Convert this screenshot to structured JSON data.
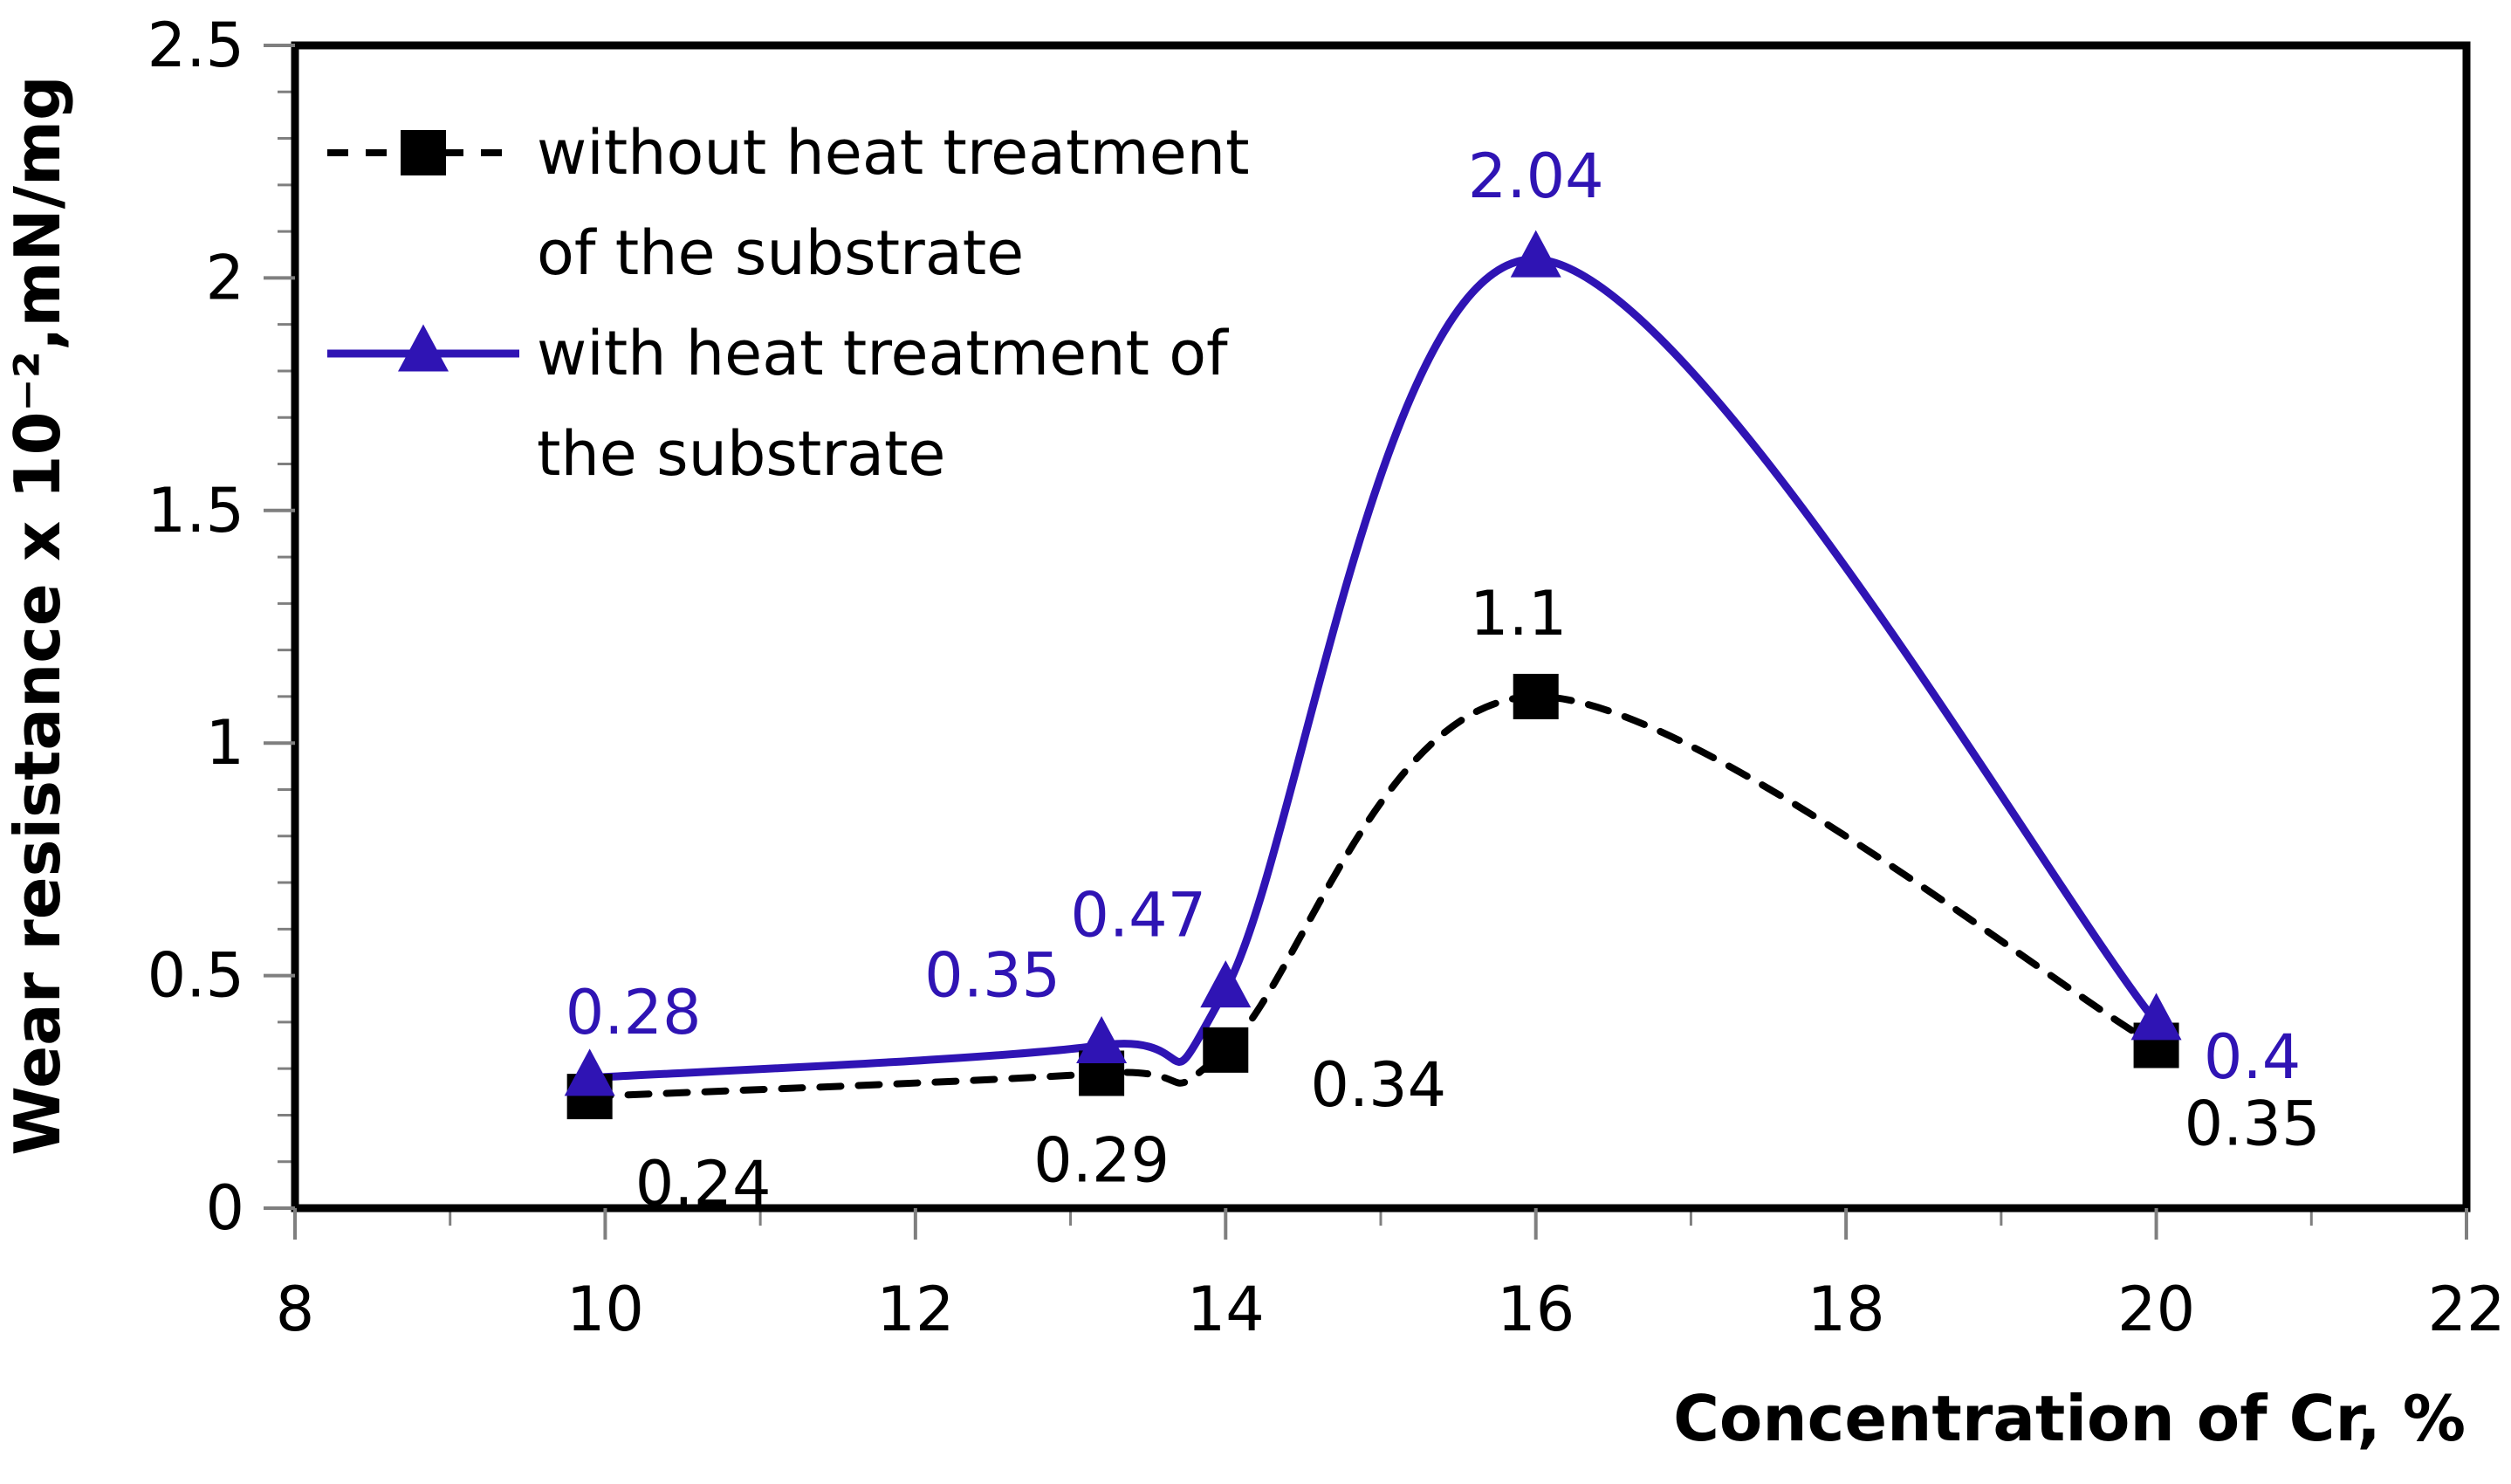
{
  "chart_data": {
    "type": "line",
    "title": "",
    "xlabel": "Concentration of Cr, %",
    "ylabel": "Wear resistance x 10⁻²,mN/mg",
    "xlim": [
      8,
      22
    ],
    "ylim": [
      0,
      2.5
    ],
    "x_ticks": [
      8,
      10,
      12,
      14,
      16,
      18,
      20,
      22
    ],
    "x_tick_labels": [
      "8",
      "10",
      "12",
      "14",
      "16",
      "18",
      "20",
      "22"
    ],
    "y_ticks": [
      0,
      0.5,
      1,
      1.5,
      2,
      2.5
    ],
    "y_tick_labels": [
      "0",
      "0.5",
      "1",
      "1.5",
      "2",
      "2.5"
    ],
    "grid": false,
    "legend_position": "top-left",
    "series": [
      {
        "name": "without heat treatment of the substrate",
        "legend_lines": [
          "without heat treatment",
          "of the substrate"
        ],
        "color": "#000000",
        "line_style": "dashed",
        "marker": "square",
        "x": [
          9.9,
          13.2,
          14,
          16,
          20
        ],
        "values": [
          0.24,
          0.29,
          0.34,
          1.1,
          0.35
        ],
        "data_labels": [
          "0.24",
          "0.29",
          "0.34",
          "1.1",
          "0.35"
        ]
      },
      {
        "name": "with heat treatment of the substrate",
        "legend_lines": [
          "with heat treatment of",
          "the substrate"
        ],
        "color": "#2F14B4",
        "line_style": "solid",
        "marker": "triangle",
        "x": [
          9.9,
          13.2,
          14,
          16,
          20
        ],
        "values": [
          0.28,
          0.35,
          0.47,
          2.04,
          0.4
        ],
        "data_labels": [
          "0.28",
          "0.35",
          "0.47",
          "2.04",
          "0.4"
        ]
      }
    ]
  }
}
